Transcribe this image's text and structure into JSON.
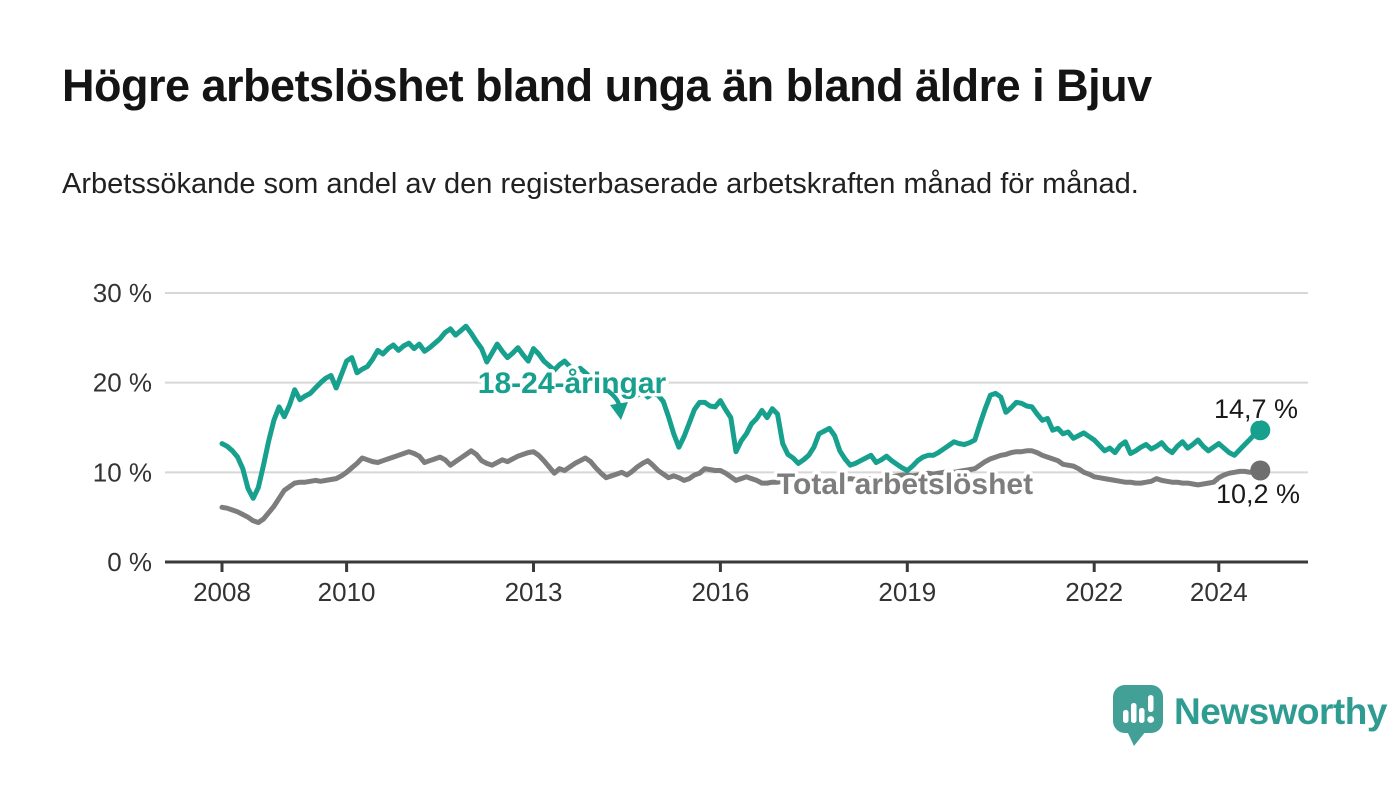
{
  "header": {
    "title": "Högre arbetslöshet bland unga än bland äldre i Bjuv",
    "subtitle": "Arbetssökande som andel av den registerbaserade arbetskraften månad för månad."
  },
  "colors": {
    "young": "#17a08e",
    "young_dot": "#17a08e",
    "total": "#7d7d7d",
    "total_dot": "#6f6f6f",
    "grid": "#d7d7d7",
    "axis": "#3a3a3a",
    "tick_text": "#333333",
    "end_label_text": "#1a1a1a",
    "logo_mark": "#42a097",
    "logo_text": "#2f9c92"
  },
  "chart_data": {
    "type": "line",
    "unit": "%",
    "frequency": "monthly",
    "x_start": "2008-01",
    "x_end": "2024-09",
    "ylim": [
      0,
      30
    ],
    "grid": "horizontal",
    "yticks": [
      {
        "value": 30,
        "label": "30 %"
      },
      {
        "value": 20,
        "label": "20 %"
      },
      {
        "value": 10,
        "label": "10 %"
      },
      {
        "value": 0,
        "label": "0 %"
      }
    ],
    "xticks": [
      {
        "year": 2008,
        "label": "2008"
      },
      {
        "year": 2010,
        "label": "2010"
      },
      {
        "year": 2013,
        "label": "2013"
      },
      {
        "year": 2016,
        "label": "2016"
      },
      {
        "year": 2019,
        "label": "2019"
      },
      {
        "year": 2022,
        "label": "2022"
      },
      {
        "year": 2024,
        "label": "2024"
      }
    ],
    "series": [
      {
        "name": "18-24-åringar",
        "color_key": "young",
        "end_label": "14,7 %",
        "last_value": 14.7,
        "values": [
          13.2,
          12.9,
          12.4,
          11.7,
          10.4,
          8.2,
          7.1,
          8.3,
          10.8,
          13.5,
          15.8,
          17.3,
          16.2,
          17.5,
          19.2,
          18.1,
          18.5,
          18.8,
          19.4,
          20.0,
          20.5,
          20.8,
          19.4,
          20.9,
          22.4,
          22.8,
          21.1,
          21.5,
          21.8,
          22.6,
          23.6,
          23.2,
          23.8,
          24.2,
          23.6,
          24.1,
          24.4,
          23.8,
          24.3,
          23.5,
          23.9,
          24.4,
          24.9,
          25.6,
          26.0,
          25.3,
          25.8,
          26.3,
          25.5,
          24.6,
          23.8,
          22.3,
          23.3,
          24.3,
          23.5,
          22.8,
          23.3,
          23.9,
          23.1,
          22.4,
          23.8,
          23.2,
          22.4,
          21.9,
          21.4,
          22.0,
          22.4,
          21.8,
          21.2,
          21.6,
          21.1,
          20.6,
          20.9,
          20.3,
          19.8,
          19.3,
          18.8,
          19.4,
          19.8,
          19.2,
          18.6,
          19.0,
          18.4,
          18.8,
          18.6,
          17.9,
          16.2,
          14.3,
          12.8,
          14.0,
          15.5,
          17.0,
          17.8,
          17.8,
          17.4,
          17.3,
          18.0,
          17.0,
          16.1,
          12.3,
          13.5,
          14.3,
          15.4,
          16.0,
          16.9,
          16.1,
          17.1,
          16.5,
          13.2,
          12.0,
          11.6,
          11.0,
          11.4,
          11.9,
          12.8,
          14.3,
          14.6,
          14.9,
          14.1,
          12.4,
          11.5,
          10.8,
          11.0,
          11.3,
          11.6,
          11.9,
          11.1,
          11.4,
          11.8,
          11.3,
          10.9,
          10.5,
          10.2,
          10.7,
          11.3,
          11.7,
          11.9,
          11.9,
          12.2,
          12.6,
          13.0,
          13.4,
          13.2,
          13.1,
          13.3,
          13.6,
          15.4,
          17.1,
          18.6,
          18.8,
          18.4,
          16.7,
          17.2,
          17.8,
          17.7,
          17.4,
          17.3,
          16.5,
          15.8,
          16.0,
          14.7,
          14.9,
          14.3,
          14.5,
          13.8,
          14.1,
          14.4,
          14.0,
          13.6,
          13.0,
          12.4,
          12.7,
          12.2,
          13.0,
          13.4,
          12.1,
          12.4,
          12.8,
          13.1,
          12.6,
          12.9,
          13.3,
          12.6,
          12.2,
          12.9,
          13.4,
          12.7,
          13.1,
          13.6,
          12.9,
          12.4,
          12.8,
          13.2,
          12.7,
          12.2,
          11.9,
          12.5,
          13.1,
          13.7,
          14.3,
          14.7
        ]
      },
      {
        "name": "Total arbetslöshet",
        "color_key": "total",
        "end_label": "10,2 %",
        "last_value": 10.2,
        "values": [
          6.1,
          6.0,
          5.8,
          5.6,
          5.3,
          5.0,
          4.6,
          4.4,
          4.8,
          5.5,
          6.2,
          7.1,
          8.0,
          8.4,
          8.8,
          8.9,
          8.9,
          9.0,
          9.1,
          9.0,
          9.1,
          9.2,
          9.3,
          9.6,
          10.0,
          10.5,
          11.0,
          11.6,
          11.4,
          11.2,
          11.1,
          11.3,
          11.5,
          11.7,
          11.9,
          12.1,
          12.3,
          12.1,
          11.8,
          11.1,
          11.3,
          11.5,
          11.7,
          11.4,
          10.8,
          11.2,
          11.6,
          12.0,
          12.4,
          12.0,
          11.3,
          11.0,
          10.8,
          11.1,
          11.4,
          11.2,
          11.5,
          11.8,
          12.0,
          12.2,
          12.3,
          11.9,
          11.3,
          10.6,
          9.9,
          10.4,
          10.2,
          10.6,
          11.0,
          11.3,
          11.6,
          11.2,
          10.5,
          9.9,
          9.4,
          9.6,
          9.8,
          10.0,
          9.7,
          10.1,
          10.6,
          11.0,
          11.3,
          10.8,
          10.2,
          9.8,
          9.4,
          9.6,
          9.4,
          9.1,
          9.3,
          9.7,
          9.9,
          10.4,
          10.3,
          10.2,
          10.2,
          9.9,
          9.5,
          9.1,
          9.3,
          9.5,
          9.3,
          9.1,
          8.8,
          8.8,
          8.9,
          8.9,
          9.0,
          9.1,
          9.2,
          9.1,
          9.0,
          9.1,
          9.2,
          9.1,
          9.0,
          8.9,
          9.0,
          9.1,
          9.2,
          9.3,
          9.2,
          9.1,
          9.2,
          9.3,
          9.4,
          9.3,
          9.4,
          9.5,
          9.6,
          9.7,
          9.7,
          9.6,
          9.7,
          9.8,
          9.9,
          9.8,
          9.9,
          10.0,
          10.1,
          10.0,
          10.1,
          10.2,
          10.3,
          10.4,
          10.8,
          11.2,
          11.5,
          11.7,
          11.9,
          12.0,
          12.2,
          12.3,
          12.3,
          12.4,
          12.4,
          12.2,
          11.9,
          11.7,
          11.5,
          11.3,
          10.9,
          10.8,
          10.7,
          10.4,
          10.0,
          9.8,
          9.5,
          9.4,
          9.3,
          9.2,
          9.1,
          9.0,
          8.9,
          8.9,
          8.8,
          8.8,
          8.9,
          9.0,
          9.3,
          9.1,
          9.0,
          8.9,
          8.9,
          8.8,
          8.8,
          8.7,
          8.6,
          8.7,
          8.8,
          8.9,
          9.4,
          9.7,
          9.9,
          10.0,
          10.1,
          10.1,
          10.0,
          10.1,
          10.2
        ]
      }
    ]
  },
  "footer": {
    "brand": "Newsworthy"
  }
}
